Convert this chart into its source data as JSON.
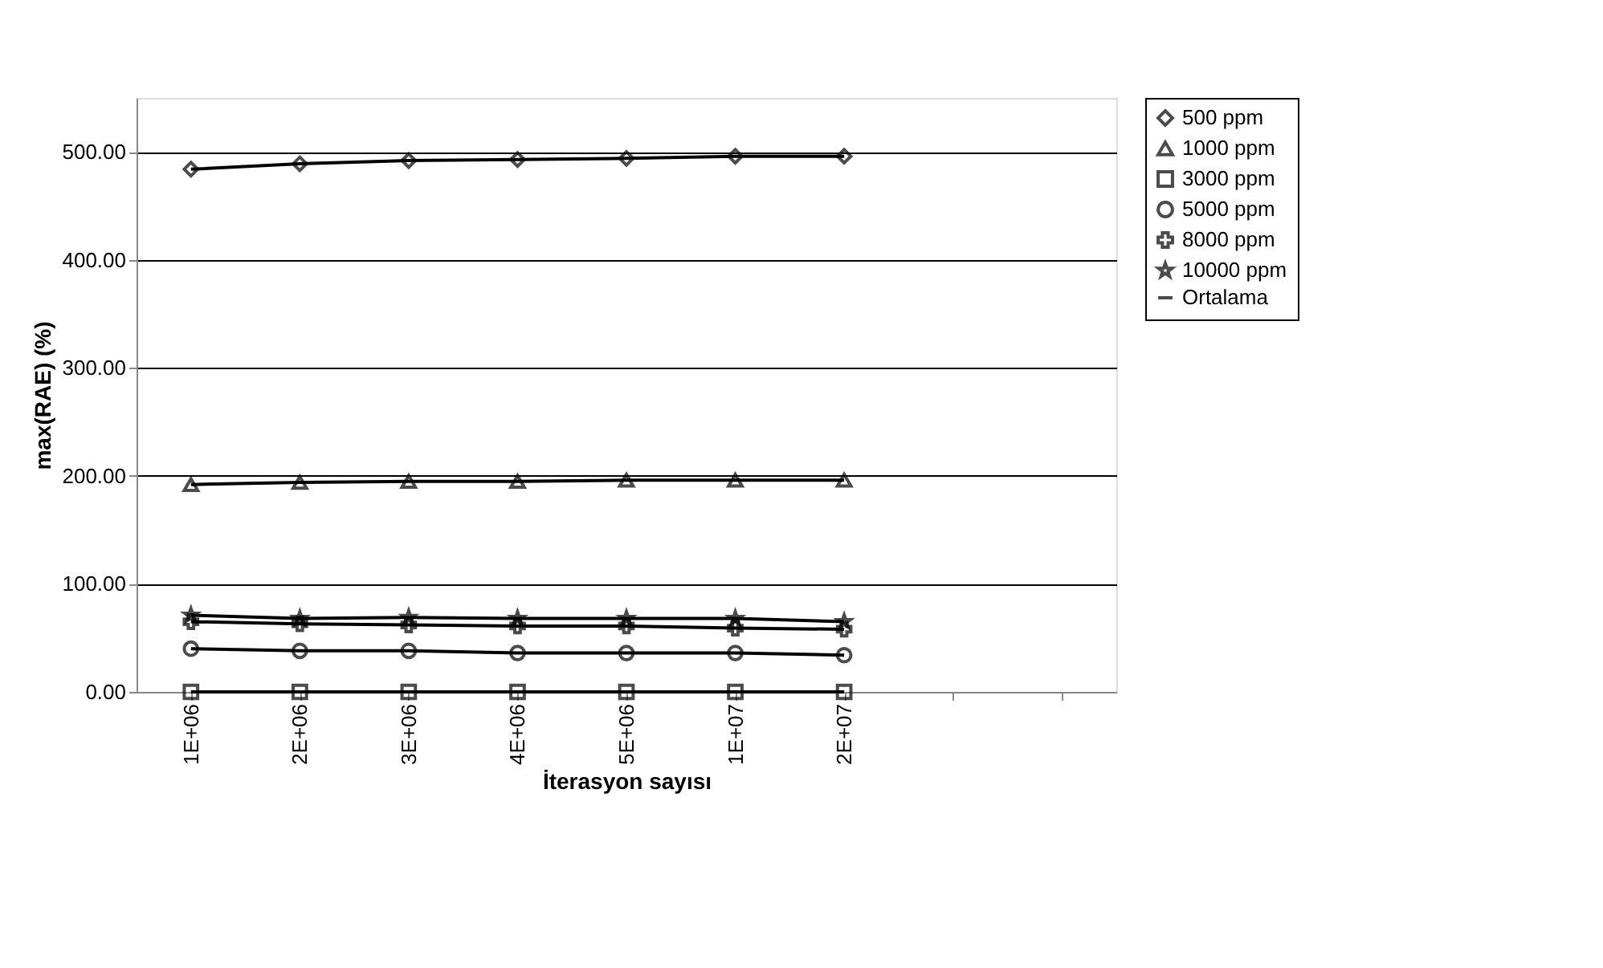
{
  "chart_data": {
    "type": "line",
    "xlabel": "İterasyon sayısı",
    "ylabel": "max(RAE) (%)",
    "categories": [
      "1E+06",
      "2E+06",
      "3E+06",
      "4E+06",
      "5E+06",
      "1E+07",
      "2E+07",
      null,
      null
    ],
    "ylim": [
      0,
      550
    ],
    "yticks": [
      {
        "value": 0,
        "label": "0.00"
      },
      {
        "value": 100,
        "label": "100.00"
      },
      {
        "value": 200,
        "label": "200.00"
      },
      {
        "value": 300,
        "label": "300.00"
      },
      {
        "value": 400,
        "label": "400.00"
      },
      {
        "value": 500,
        "label": "500.00"
      }
    ],
    "grid": "y",
    "legend": "right",
    "line_style": "solid",
    "series": [
      {
        "name": "500 ppm",
        "color": "#000000",
        "marker": "diamond",
        "values": [
          484,
          489,
          492,
          493,
          494,
          496,
          496,
          null,
          null
        ]
      },
      {
        "name": "1000 ppm",
        "color": "#000000",
        "marker": "triangle",
        "values": [
          192,
          194,
          195,
          195,
          196,
          196,
          196,
          null,
          null
        ]
      },
      {
        "name": "3000 ppm",
        "color": "#000000",
        "marker": "square",
        "values": [
          0,
          0,
          0,
          0,
          0,
          0,
          0,
          null,
          null
        ]
      },
      {
        "name": "5000 ppm",
        "color": "#000000",
        "marker": "circle",
        "values": [
          40,
          38,
          38,
          36,
          36,
          36,
          34,
          null,
          null
        ]
      },
      {
        "name": "8000 ppm",
        "color": "#000000",
        "marker": "cross",
        "values": [
          65,
          63,
          62,
          61,
          61,
          59,
          58,
          null,
          null
        ]
      },
      {
        "name": "10000 ppm",
        "color": "#000000",
        "marker": "star",
        "values": [
          71,
          68,
          69,
          68,
          68,
          68,
          65,
          null,
          null
        ]
      },
      {
        "name": "Ortalama",
        "color": "#000000",
        "marker": "none",
        "values": [
          null,
          null,
          null,
          null,
          null,
          null,
          null,
          null,
          null
        ]
      }
    ]
  }
}
